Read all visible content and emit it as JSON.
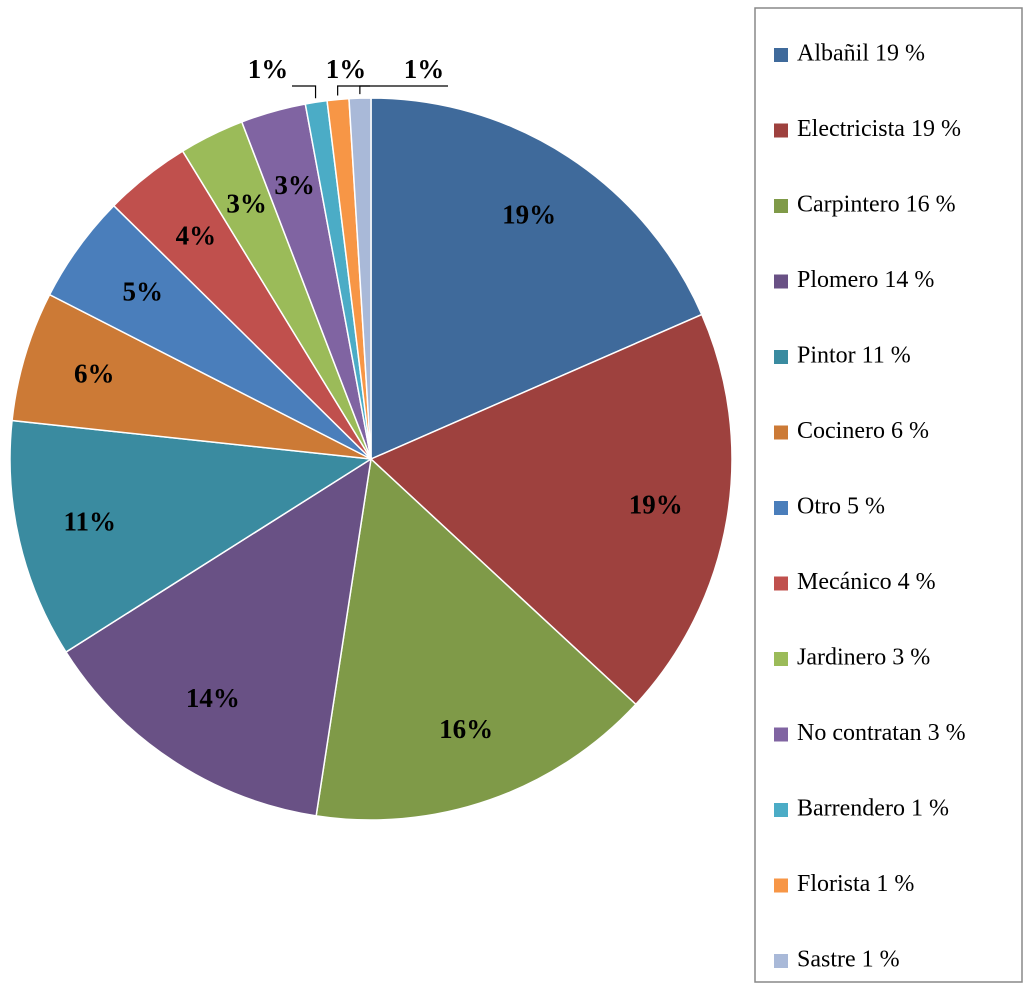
{
  "chart_data": {
    "type": "pie",
    "categories": [
      "Albañil 19 %",
      "Electricista 19 %",
      "Carpintero 16 %",
      "Plomero 14 %",
      "Pintor 11 %",
      "Cocinero 6 %",
      "Otro 5 %",
      "Mecánico 4 %",
      "Jardinero 3 %",
      "No contratan 3 %",
      "Barrendero 1 %",
      "Florista 1 %",
      "Sastre 1 %"
    ],
    "values": [
      19,
      19,
      16,
      14,
      11,
      6,
      5,
      4,
      3,
      3,
      1,
      1,
      1
    ],
    "value_labels": [
      "19%",
      "19%",
      "16%",
      "14%",
      "11%",
      "6%",
      "5%",
      "4%",
      "3%",
      "3%",
      "1%",
      "1%",
      "1%"
    ],
    "colors": [
      "#3f6a9b",
      "#9e413e",
      "#7f9a48",
      "#695185",
      "#3a8ba0",
      "#cc7a36",
      "#4a7ebb",
      "#c0504d",
      "#9bbb59",
      "#8064a2",
      "#4bacc6",
      "#f79646",
      "#a9b9d8"
    ],
    "legend": "right"
  }
}
